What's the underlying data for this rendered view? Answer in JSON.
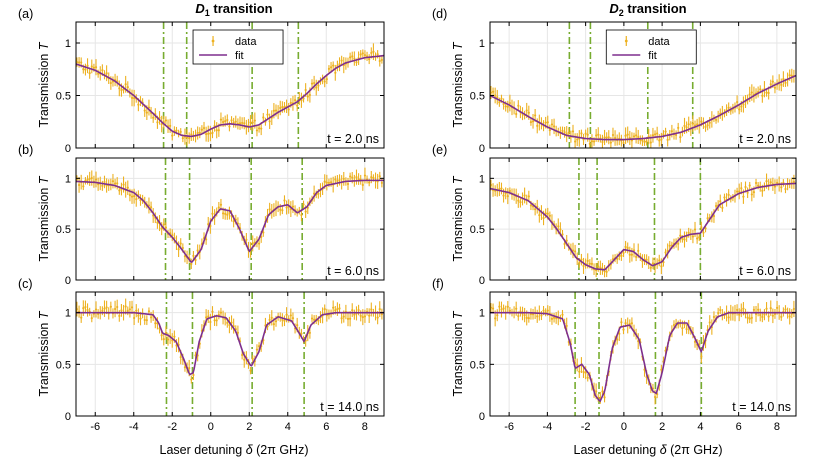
{
  "figure": {
    "col_titles": [
      {
        "main": "D",
        "sub": "1",
        "rest": " transition"
      },
      {
        "main": "D",
        "sub": "2",
        "rest": " transition"
      }
    ],
    "xlabel": {
      "pre": "Laser detuning ",
      "sym": "δ",
      "post": " (2π GHz)"
    },
    "ylabel": {
      "pre": "Transmission ",
      "sym": "T"
    },
    "legend": {
      "data": "data",
      "fit": "fit"
    },
    "colors": {
      "data": "#EDB120",
      "fit": "#7E2F8E",
      "guide": "#77AC30",
      "grid": "#e6e6e6",
      "axis": "#000000"
    },
    "xlim": [
      -7,
      9
    ],
    "ylim": [
      0,
      1.2
    ],
    "xticks": [
      -6,
      -4,
      -2,
      0,
      2,
      4,
      6,
      8
    ],
    "yticks": [
      0,
      0.5,
      1
    ]
  },
  "chart_data": [
    {
      "type": "line",
      "panel": "(a)",
      "transition": "D1",
      "time_label": "t = 2.0 ns",
      "resonances": [
        -2.45,
        -1.25,
        2.15,
        4.55
      ],
      "fit": {
        "x": [
          -7,
          -6,
          -5,
          -4,
          -3,
          -2.5,
          -2,
          -1.5,
          -1,
          -0.5,
          0,
          0.5,
          1,
          1.5,
          2,
          2.5,
          3,
          3.5,
          4,
          4.5,
          5,
          5.5,
          6,
          6.5,
          7,
          8,
          9
        ],
        "y": [
          0.8,
          0.74,
          0.64,
          0.5,
          0.33,
          0.24,
          0.16,
          0.12,
          0.11,
          0.13,
          0.18,
          0.22,
          0.23,
          0.22,
          0.2,
          0.22,
          0.28,
          0.34,
          0.39,
          0.44,
          0.52,
          0.61,
          0.69,
          0.76,
          0.81,
          0.86,
          0.88
        ]
      },
      "data_noise": 0.05
    },
    {
      "type": "line",
      "panel": "(b)",
      "transition": "D1",
      "time_label": "t = 6.0 ns",
      "resonances": [
        -2.35,
        -1.1,
        2.1,
        4.75
      ],
      "fit": {
        "x": [
          -7,
          -6,
          -5,
          -4,
          -3.5,
          -3,
          -2.5,
          -2,
          -1.5,
          -1,
          -0.5,
          0,
          0.5,
          1,
          1.5,
          2,
          2.5,
          3,
          3.5,
          4,
          4.5,
          5,
          5.5,
          6,
          7,
          8,
          9
        ],
        "y": [
          0.97,
          0.96,
          0.93,
          0.86,
          0.78,
          0.66,
          0.52,
          0.42,
          0.3,
          0.17,
          0.3,
          0.58,
          0.7,
          0.68,
          0.5,
          0.28,
          0.4,
          0.64,
          0.72,
          0.74,
          0.66,
          0.72,
          0.86,
          0.93,
          0.97,
          0.98,
          0.98
        ]
      },
      "data_noise": 0.05
    },
    {
      "type": "line",
      "panel": "(c)",
      "transition": "D1",
      "time_label": "t = 14.0 ns",
      "resonances": [
        -2.3,
        -0.95,
        2.15,
        4.85
      ],
      "fit": {
        "x": [
          -7,
          -5,
          -4,
          -3,
          -2.7,
          -2.5,
          -2.2,
          -1.8,
          -1.4,
          -1.1,
          -0.9,
          -0.6,
          -0.2,
          0.3,
          0.8,
          1.3,
          1.7,
          2.1,
          2.5,
          2.9,
          3.5,
          4.2,
          4.6,
          4.85,
          5.2,
          5.8,
          6.5,
          9
        ],
        "y": [
          1.0,
          1.0,
          1.0,
          0.98,
          0.9,
          0.8,
          0.78,
          0.72,
          0.55,
          0.4,
          0.42,
          0.72,
          0.94,
          0.97,
          0.95,
          0.82,
          0.6,
          0.48,
          0.62,
          0.88,
          0.96,
          0.92,
          0.8,
          0.72,
          0.88,
          0.98,
          1.0,
          1.0
        ]
      },
      "data_noise": 0.06
    },
    {
      "type": "line",
      "panel": "(d)",
      "transition": "D2",
      "time_label": "t = 2.0 ns",
      "resonances": [
        -2.85,
        -1.75,
        1.25,
        3.6
      ],
      "fit": {
        "x": [
          -7,
          -6,
          -5,
          -4,
          -3,
          -2,
          -1,
          0,
          1,
          2,
          3,
          4,
          5,
          6,
          7,
          8,
          9
        ],
        "y": [
          0.5,
          0.41,
          0.3,
          0.2,
          0.12,
          0.09,
          0.08,
          0.08,
          0.09,
          0.11,
          0.15,
          0.22,
          0.31,
          0.41,
          0.52,
          0.61,
          0.69
        ]
      },
      "data_noise": 0.05
    },
    {
      "type": "line",
      "panel": "(e)",
      "transition": "D2",
      "time_label": "t = 6.0 ns",
      "resonances": [
        -2.35,
        -1.4,
        1.6,
        4.0
      ],
      "fit": {
        "x": [
          -7,
          -6,
          -5,
          -4,
          -3.5,
          -3,
          -2.5,
          -2,
          -1.5,
          -1,
          -0.5,
          0,
          0.5,
          1,
          1.5,
          2,
          2.5,
          3,
          3.5,
          4,
          4.5,
          5,
          6,
          7,
          8,
          9
        ],
        "y": [
          0.9,
          0.86,
          0.78,
          0.62,
          0.5,
          0.36,
          0.22,
          0.15,
          0.11,
          0.1,
          0.2,
          0.3,
          0.28,
          0.2,
          0.14,
          0.18,
          0.32,
          0.42,
          0.45,
          0.46,
          0.6,
          0.74,
          0.85,
          0.91,
          0.94,
          0.95
        ]
      },
      "data_noise": 0.05
    },
    {
      "type": "line",
      "panel": "(f)",
      "transition": "D2",
      "time_label": "t = 14.0 ns",
      "resonances": [
        -2.55,
        -1.3,
        1.65,
        4.05
      ],
      "fit": {
        "x": [
          -7,
          -5,
          -4,
          -3.2,
          -2.8,
          -2.55,
          -2.2,
          -1.8,
          -1.5,
          -1.25,
          -1,
          -0.6,
          -0.2,
          0.3,
          0.8,
          1.2,
          1.5,
          1.7,
          2.0,
          2.4,
          2.8,
          3.3,
          3.7,
          4.05,
          4.4,
          4.9,
          5.5,
          9
        ],
        "y": [
          1.0,
          1.0,
          0.99,
          0.94,
          0.7,
          0.46,
          0.5,
          0.4,
          0.2,
          0.14,
          0.24,
          0.66,
          0.86,
          0.88,
          0.74,
          0.4,
          0.24,
          0.22,
          0.42,
          0.78,
          0.9,
          0.9,
          0.76,
          0.62,
          0.82,
          0.96,
          1.0,
          1.0
        ]
      },
      "data_noise": 0.06
    }
  ]
}
